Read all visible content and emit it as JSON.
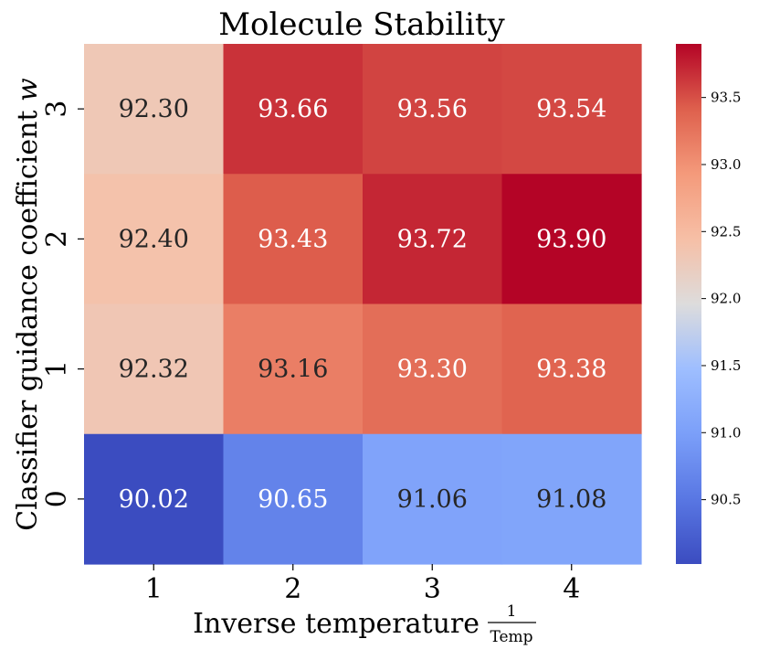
{
  "chart_data": {
    "type": "heatmap",
    "title": "Molecule Stability",
    "xlabel": "Inverse temperature",
    "xlabel_fraction": {
      "numerator": "1",
      "denominator": "Temp"
    },
    "ylabel": "Classifier guidance coefficient",
    "ylabel_symbol": "w",
    "x_categories": [
      "1",
      "2",
      "3",
      "4"
    ],
    "y_categories": [
      "3",
      "2",
      "1",
      "0"
    ],
    "values": [
      [
        92.3,
        93.66,
        93.56,
        93.54
      ],
      [
        92.4,
        93.43,
        93.72,
        93.9
      ],
      [
        92.32,
        93.16,
        93.3,
        93.38
      ],
      [
        90.02,
        90.65,
        91.06,
        91.08
      ]
    ],
    "value_labels": [
      [
        "92.30",
        "93.66",
        "93.56",
        "93.54"
      ],
      [
        "92.40",
        "93.43",
        "93.72",
        "93.90"
      ],
      [
        "92.32",
        "93.16",
        "93.30",
        "93.38"
      ],
      [
        "90.02",
        "90.65",
        "91.06",
        "91.08"
      ]
    ],
    "colormap": "coolwarm",
    "vmin": 90.02,
    "vmax": 93.9,
    "colorbar_ticks": [
      90.5,
      91.0,
      91.5,
      92.0,
      92.5,
      93.0,
      93.5
    ],
    "colorbar_tick_labels": [
      "90.5",
      "91.0",
      "91.5",
      "92.0",
      "92.5",
      "93.0",
      "93.5"
    ]
  }
}
